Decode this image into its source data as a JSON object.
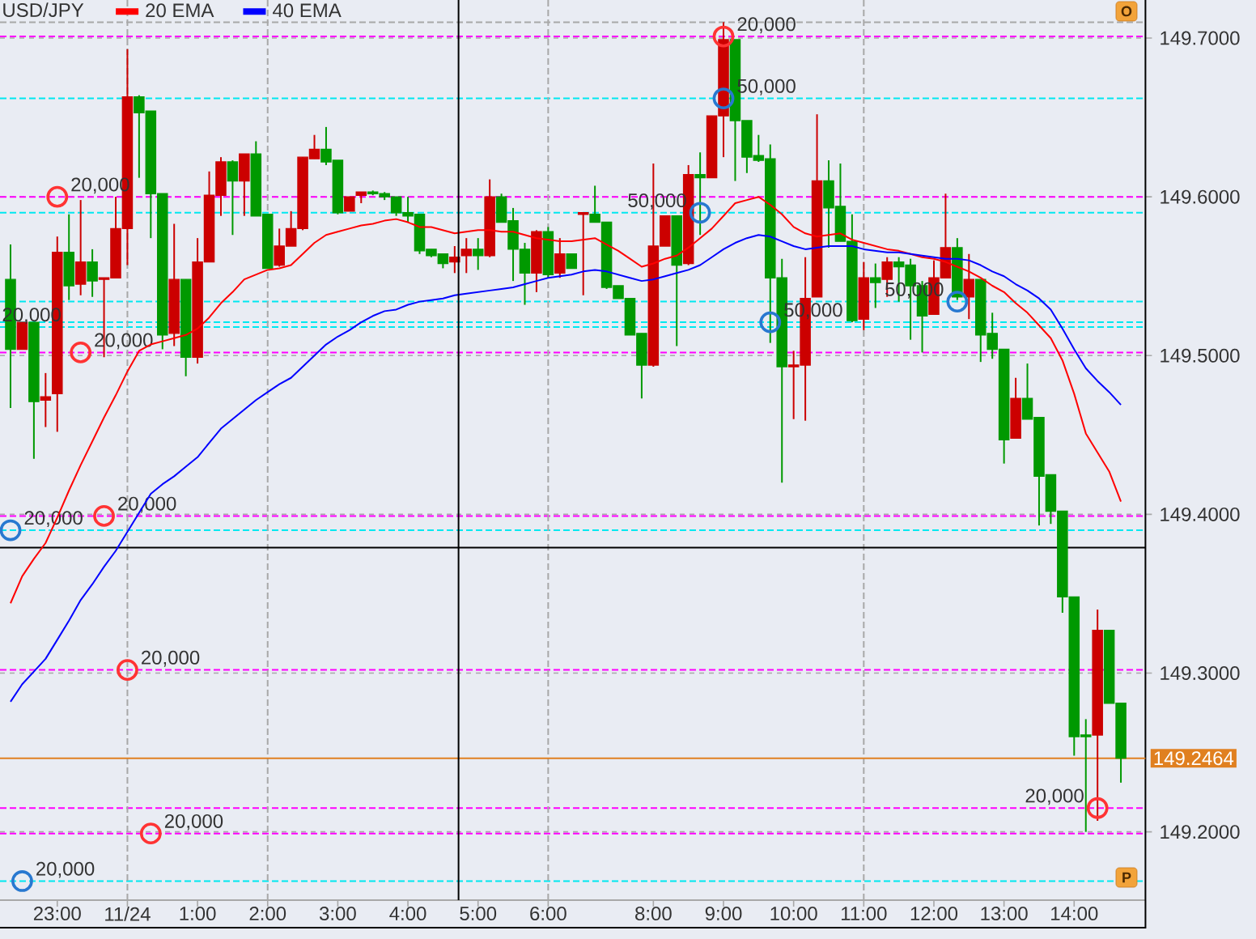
{
  "chart_data": {
    "type": "candlestick",
    "title": "USD/JPY",
    "categories": [
      null,
      null,
      null,
      null,
      "23:00",
      null,
      null,
      null,
      null,
      null,
      "11/24",
      null,
      null,
      null,
      null,
      null,
      "1:00",
      null,
      null,
      null,
      null,
      null,
      "2:00",
      null,
      null,
      null,
      null,
      null,
      "3:00",
      null,
      null,
      null,
      null,
      null,
      "4:00",
      null,
      null,
      null,
      null,
      null,
      "5:00",
      null,
      null,
      null,
      null,
      null,
      "6:00",
      null,
      null,
      null,
      null,
      null,
      null,
      null,
      null,
      "8:00",
      null,
      null,
      null,
      null,
      null,
      "9:00",
      null,
      null,
      null,
      null,
      null,
      "10:00",
      null,
      null,
      null,
      null,
      null,
      "11:00",
      null,
      null,
      null,
      null,
      null,
      "12:00",
      null,
      null,
      null,
      null,
      null,
      "13:00",
      null,
      null,
      null,
      null,
      null,
      "14:00",
      null,
      null,
      null,
      null
    ],
    "ohlc": [
      [
        149.548,
        149.57,
        149.467,
        149.504
      ],
      [
        149.504,
        149.521,
        149.504,
        149.521
      ],
      [
        149.521,
        149.521,
        149.435,
        149.471
      ],
      [
        149.472,
        149.489,
        149.455,
        149.474
      ],
      [
        149.476,
        149.575,
        149.452,
        149.565
      ],
      [
        149.565,
        149.589,
        149.535,
        149.544
      ],
      [
        149.545,
        149.598,
        149.538,
        149.559
      ],
      [
        149.559,
        149.567,
        149.537,
        149.547
      ],
      [
        149.548,
        149.549,
        149.499,
        149.549
      ],
      [
        149.549,
        149.6,
        149.549,
        149.58
      ],
      [
        149.58,
        149.693,
        149.557,
        149.663
      ],
      [
        149.663,
        149.664,
        149.612,
        149.653
      ],
      [
        149.654,
        149.654,
        149.574,
        149.602
      ],
      [
        149.602,
        149.602,
        149.504,
        149.513
      ],
      [
        149.514,
        149.583,
        149.506,
        149.548
      ],
      [
        149.548,
        149.548,
        149.487,
        149.499
      ],
      [
        149.499,
        149.574,
        149.495,
        149.559
      ],
      [
        149.559,
        149.616,
        149.559,
        149.601
      ],
      [
        149.601,
        149.625,
        149.588,
        149.622
      ],
      [
        149.622,
        149.623,
        149.576,
        149.61
      ],
      [
        149.61,
        149.627,
        149.588,
        149.627
      ],
      [
        149.627,
        149.635,
        149.588,
        149.588
      ],
      [
        149.589,
        149.589,
        149.555,
        149.555
      ],
      [
        149.557,
        149.58,
        149.556,
        149.569
      ],
      [
        149.569,
        149.591,
        149.569,
        149.58
      ],
      [
        149.58,
        149.625,
        149.579,
        149.625
      ],
      [
        149.624,
        149.639,
        149.624,
        149.63
      ],
      [
        149.63,
        149.644,
        149.62,
        149.622
      ],
      [
        149.623,
        149.623,
        149.589,
        149.59
      ],
      [
        149.591,
        149.6,
        149.591,
        149.6
      ],
      [
        149.601,
        149.603,
        149.596,
        149.603
      ],
      [
        149.603,
        149.604,
        149.601,
        149.602
      ],
      [
        149.602,
        149.603,
        149.598,
        149.6
      ],
      [
        149.6,
        149.6,
        149.588,
        149.59
      ],
      [
        149.59,
        149.6,
        149.584,
        149.588
      ],
      [
        149.589,
        149.589,
        149.564,
        149.566
      ],
      [
        149.567,
        149.567,
        149.562,
        149.563
      ],
      [
        149.564,
        149.564,
        149.555,
        149.558
      ],
      [
        149.559,
        149.569,
        149.552,
        149.562
      ],
      [
        149.563,
        149.574,
        149.552,
        149.567
      ],
      [
        149.567,
        149.574,
        149.554,
        149.563
      ],
      [
        149.563,
        149.611,
        149.562,
        149.6
      ],
      [
        149.6,
        149.602,
        149.584,
        149.584
      ],
      [
        149.585,
        149.593,
        149.547,
        149.567
      ],
      [
        149.567,
        149.571,
        149.532,
        149.552
      ],
      [
        149.552,
        149.579,
        149.54,
        149.578
      ],
      [
        149.578,
        149.581,
        149.549,
        149.551
      ],
      [
        149.552,
        149.574,
        149.549,
        149.564
      ],
      [
        149.564,
        149.564,
        149.555,
        149.555
      ],
      [
        149.589,
        149.59,
        149.538,
        149.59
      ],
      [
        149.589,
        149.607,
        149.584,
        149.584
      ],
      [
        149.584,
        149.584,
        149.542,
        149.543
      ],
      [
        149.544,
        149.544,
        149.536,
        149.536
      ],
      [
        149.536,
        149.536,
        149.513,
        149.513
      ],
      [
        149.514,
        149.514,
        149.473,
        149.494
      ],
      [
        149.494,
        149.621,
        149.493,
        149.569
      ],
      [
        149.569,
        149.588,
        149.569,
        149.588
      ],
      [
        149.588,
        149.588,
        149.506,
        149.557
      ],
      [
        149.558,
        149.62,
        149.557,
        149.614
      ],
      [
        149.614,
        149.628,
        149.576,
        149.612
      ],
      [
        149.612,
        149.651,
        149.612,
        149.651
      ],
      [
        149.651,
        149.71,
        149.625,
        149.699
      ],
      [
        149.699,
        149.699,
        149.61,
        149.648
      ],
      [
        149.648,
        149.648,
        149.615,
        149.625
      ],
      [
        149.626,
        149.639,
        149.622,
        149.623
      ],
      [
        149.624,
        149.633,
        149.508,
        149.549
      ],
      [
        149.549,
        149.561,
        149.42,
        149.493
      ],
      [
        149.493,
        149.503,
        149.46,
        149.494
      ],
      [
        149.494,
        149.562,
        149.459,
        149.536
      ],
      [
        149.537,
        149.652,
        149.537,
        149.61
      ],
      [
        149.61,
        149.623,
        149.568,
        149.593
      ],
      [
        149.594,
        149.621,
        149.572,
        149.572
      ],
      [
        149.572,
        149.589,
        149.521,
        149.522
      ],
      [
        149.523,
        149.559,
        149.516,
        149.549
      ],
      [
        149.549,
        149.558,
        149.53,
        149.546
      ],
      [
        149.548,
        149.562,
        149.537,
        149.559
      ],
      [
        149.559,
        149.562,
        149.534,
        149.556
      ],
      [
        149.557,
        149.561,
        149.51,
        149.544
      ],
      [
        149.544,
        149.547,
        149.502,
        149.525
      ],
      [
        149.526,
        149.56,
        149.526,
        149.549
      ],
      [
        149.549,
        149.602,
        149.549,
        149.568
      ],
      [
        149.568,
        149.574,
        149.535,
        149.537
      ],
      [
        149.537,
        149.564,
        149.523,
        149.548
      ],
      [
        149.548,
        149.548,
        149.496,
        149.513
      ],
      [
        149.514,
        149.527,
        149.498,
        149.504
      ],
      [
        149.504,
        149.504,
        149.432,
        149.447
      ],
      [
        149.448,
        149.486,
        149.448,
        149.473
      ],
      [
        149.473,
        149.495,
        149.46,
        149.46
      ],
      [
        149.461,
        149.461,
        149.393,
        149.424
      ],
      [
        149.425,
        149.425,
        149.394,
        149.402
      ],
      [
        149.402,
        149.402,
        149.338,
        149.348
      ],
      [
        149.348,
        149.348,
        149.248,
        149.26
      ],
      [
        149.261,
        149.271,
        149.2,
        149.26
      ],
      [
        149.261,
        149.34,
        149.207,
        149.327
      ],
      [
        149.327,
        149.327,
        149.281,
        149.281
      ],
      [
        149.281,
        149.281,
        149.231,
        149.2464
      ]
    ],
    "colors": [
      "#009900",
      "#cc0000",
      "#009900",
      "#cc0000",
      "#cc0000",
      "#009900",
      "#cc0000",
      "#009900",
      "#cc0000",
      "#cc0000",
      "#cc0000",
      "#009900",
      "#009900",
      "#009900",
      "#cc0000",
      "#009900",
      "#cc0000",
      "#cc0000",
      "#cc0000",
      "#009900",
      "#cc0000",
      "#009900",
      "#009900",
      "#cc0000",
      "#cc0000",
      "#cc0000",
      "#cc0000",
      "#009900",
      "#009900",
      "#cc0000",
      "#cc0000",
      "#009900",
      "#009900",
      "#009900",
      "#009900",
      "#009900",
      "#009900",
      "#009900",
      "#cc0000",
      "#cc0000",
      "#009900",
      "#cc0000",
      "#009900",
      "#009900",
      "#009900",
      "#cc0000",
      "#009900",
      "#cc0000",
      "#009900",
      "#cc0000",
      "#009900",
      "#009900",
      "#009900",
      "#009900",
      "#009900",
      "#cc0000",
      "#cc0000",
      "#009900",
      "#cc0000",
      "#009900",
      "#cc0000",
      "#cc0000",
      "#009900",
      "#009900",
      "#009900",
      "#009900",
      "#009900",
      "#cc0000",
      "#cc0000",
      "#cc0000",
      "#009900",
      "#009900",
      "#009900",
      "#cc0000",
      "#009900",
      "#cc0000",
      "#009900",
      "#009900",
      "#009900",
      "#cc0000",
      "#cc0000",
      "#009900",
      "#cc0000",
      "#009900",
      "#009900",
      "#009900",
      "#cc0000",
      "#009900",
      "#009900",
      "#009900",
      "#009900",
      "#009900",
      "#009900",
      "#cc0000",
      "#009900",
      "#009900"
    ],
    "series": [
      {
        "name": "20 EMA",
        "type": "line",
        "color": "#ff0000",
        "values": [
          149.344,
          149.361,
          149.372,
          149.382,
          149.398,
          149.415,
          149.431,
          149.446,
          149.461,
          149.475,
          149.49,
          149.503,
          149.507,
          149.509,
          149.511,
          149.513,
          149.517,
          149.524,
          149.533,
          149.54,
          149.548,
          149.551,
          149.554,
          149.555,
          149.557,
          149.564,
          149.571,
          149.576,
          149.578,
          149.58,
          149.582,
          149.583,
          149.585,
          149.586,
          149.584,
          149.581,
          149.581,
          149.579,
          149.577,
          149.578,
          149.579,
          149.579,
          149.578,
          149.578,
          149.576,
          149.574,
          149.573,
          149.572,
          149.572,
          149.573,
          149.574,
          149.57,
          149.566,
          149.561,
          149.556,
          149.558,
          149.561,
          149.563,
          149.568,
          149.574,
          149.58,
          149.588,
          149.596,
          149.598,
          149.6,
          149.595,
          149.589,
          149.581,
          149.577,
          149.575,
          149.576,
          149.577,
          149.573,
          149.571,
          149.569,
          149.567,
          149.566,
          149.564,
          149.562,
          149.561,
          149.559,
          149.556,
          149.553,
          149.549,
          149.544,
          149.54,
          149.533,
          149.527,
          149.519,
          149.511,
          149.497,
          149.476,
          149.451,
          149.439,
          149.427,
          149.408
        ]
      },
      {
        "name": "40 EMA",
        "type": "line",
        "color": "#0000ff",
        "values": [
          149.282,
          149.293,
          149.301,
          149.309,
          149.321,
          149.333,
          149.346,
          149.356,
          149.367,
          149.377,
          149.389,
          149.401,
          149.413,
          149.419,
          149.424,
          149.43,
          149.436,
          149.445,
          149.454,
          149.46,
          149.466,
          149.472,
          149.477,
          149.482,
          149.486,
          149.493,
          149.5,
          149.507,
          149.512,
          149.516,
          149.521,
          149.525,
          149.528,
          149.529,
          149.532,
          149.534,
          149.535,
          149.536,
          149.538,
          149.539,
          149.54,
          149.541,
          149.542,
          149.543,
          149.545,
          149.547,
          149.549,
          149.55,
          149.551,
          149.553,
          149.554,
          149.553,
          149.551,
          149.549,
          149.547,
          149.548,
          149.55,
          149.552,
          149.554,
          149.557,
          149.562,
          149.567,
          149.571,
          149.574,
          149.576,
          149.575,
          149.572,
          149.569,
          149.567,
          149.568,
          149.569,
          149.569,
          149.569,
          149.567,
          149.566,
          149.565,
          149.565,
          149.564,
          149.563,
          149.562,
          149.561,
          149.561,
          149.56,
          149.557,
          149.553,
          149.55,
          149.545,
          149.541,
          149.536,
          149.529,
          149.517,
          149.504,
          149.492,
          149.484,
          149.477,
          149.469
        ]
      },
      {
        "type": "scatter",
        "color": "#ff3333",
        "marker": "circle",
        "values": [
          null,
          null,
          null,
          null,
          149.6,
          null,
          149.502,
          null,
          149.399,
          null,
          149.302,
          null,
          149.199,
          null,
          null,
          null,
          null,
          null,
          null,
          null,
          null,
          null,
          null,
          null,
          null,
          null,
          null,
          null,
          null,
          null,
          null,
          null,
          null,
          null,
          null,
          null,
          null,
          null,
          null,
          null,
          null,
          null,
          null,
          null,
          null,
          null,
          null,
          null,
          null,
          null,
          null,
          null,
          null,
          null,
          null,
          null,
          null,
          null,
          null,
          null,
          null,
          149.701,
          null,
          null,
          null,
          null,
          null,
          null,
          null,
          null,
          null,
          null,
          null,
          null,
          null,
          null,
          null,
          null,
          null,
          null,
          null,
          null,
          null,
          null,
          null,
          null,
          null,
          null,
          null,
          null,
          null,
          null,
          null,
          149.215,
          null,
          null
        ]
      },
      {
        "type": "scatter",
        "color": "#2878d0",
        "marker": "circle",
        "values": [
          149.39,
          149.169,
          null,
          null,
          null,
          null,
          null,
          null,
          null,
          null,
          null,
          null,
          null,
          null,
          null,
          null,
          null,
          null,
          null,
          null,
          null,
          null,
          null,
          null,
          null,
          null,
          null,
          null,
          null,
          null,
          null,
          null,
          null,
          null,
          null,
          null,
          null,
          null,
          null,
          null,
          null,
          null,
          null,
          null,
          null,
          null,
          null,
          null,
          null,
          null,
          null,
          null,
          null,
          null,
          null,
          null,
          null,
          null,
          null,
          149.59,
          null,
          149.662,
          null,
          null,
          null,
          149.521,
          null,
          null,
          null,
          null,
          null,
          null,
          null,
          null,
          null,
          null,
          null,
          null,
          null,
          null,
          null,
          149.534,
          null,
          null,
          null,
          null,
          null,
          null,
          null,
          null,
          null,
          null,
          null,
          null,
          null,
          null
        ]
      }
    ],
    "ylim": [
      149.157,
      149.724
    ],
    "yticks": [
      {
        "value": 149.2,
        "label": "149.2000"
      },
      {
        "value": 149.3,
        "label": "149.3000"
      },
      {
        "value": 149.4,
        "label": "149.4000"
      },
      {
        "value": 149.5,
        "label": "149.5000"
      },
      {
        "value": 149.6,
        "label": "149.6000"
      },
      {
        "value": 149.7,
        "label": "149.7000"
      }
    ],
    "grid": "y",
    "legend": "top left",
    "ref_lines": [
      {
        "axis": "y",
        "value": 149.71,
        "color": "#a8a8a8",
        "line_style": "dashed"
      },
      {
        "axis": "y",
        "value": 149.701,
        "color": "#ff00ff",
        "line_style": "dashed"
      },
      {
        "axis": "y",
        "value": 149.662,
        "color": "#00e8f0",
        "line_style": "dashed"
      },
      {
        "axis": "y",
        "value": 149.6,
        "color": "#ff00ff",
        "line_style": "dashed"
      },
      {
        "axis": "y",
        "value": 149.59,
        "color": "#00e8f0",
        "line_style": "dashed"
      },
      {
        "axis": "y",
        "value": 149.534,
        "color": "#00e8f0",
        "line_style": "dashed"
      },
      {
        "axis": "y",
        "value": 149.521,
        "color": "#00e8f0",
        "line_style": "dashed"
      },
      {
        "axis": "y",
        "value": 149.518,
        "color": "#00e8f0",
        "line_style": "dashed"
      },
      {
        "axis": "y",
        "value": 149.502,
        "color": "#ff00ff",
        "line_style": "dashed"
      },
      {
        "axis": "y",
        "value": 149.399,
        "color": "#ff00ff",
        "line_style": "dashed"
      },
      {
        "axis": "y",
        "value": 149.39,
        "color": "#00e8f0",
        "line_style": "dashed"
      },
      {
        "axis": "y",
        "value": 149.302,
        "color": "#ff00ff",
        "line_style": "dashed"
      },
      {
        "axis": "y",
        "value": 149.215,
        "color": "#ff00ff",
        "line_style": "dashed"
      },
      {
        "axis": "y",
        "value": 149.199,
        "color": "#ff00ff",
        "line_style": "dashed"
      },
      {
        "axis": "y",
        "value": 149.169,
        "color": "#00e8f0",
        "line_style": "dashed"
      },
      {
        "axis": "x",
        "value": "11/24",
        "color": "#a8a8a8",
        "line_style": "dashed"
      },
      {
        "axis": "x",
        "value": "2:00",
        "color": "#a8a8a8",
        "line_style": "dashed"
      },
      {
        "axis": "x",
        "value": "6:00",
        "color": "#a8a8a8",
        "line_style": "dashed"
      },
      {
        "axis": "x",
        "value": "11:00",
        "color": "#a8a8a8",
        "line_style": "dashed"
      },
      {
        "axis": "y",
        "value": 149.379,
        "color": "#000000",
        "line_style": "solid"
      },
      {
        "axis": "y",
        "value": 149.2464,
        "color": "#e08020",
        "line_style": "solid",
        "label": "149.2464"
      }
    ],
    "annotations": [
      "O",
      "P",
      {
        "text": "20,000",
        "y": 149.6
      },
      {
        "text": "20,000",
        "y": 149.502
      },
      {
        "text": "20,000",
        "y": 149.399
      },
      {
        "text": "20,000",
        "y": 149.302
      },
      {
        "text": "20,000",
        "y": 149.199
      },
      {
        "text": "20,000",
        "y": 149.701
      },
      {
        "text": "20,000",
        "y": 149.215
      },
      {
        "text": "20,000",
        "y": 149.518
      },
      {
        "text": "20,000",
        "y": 149.39
      },
      {
        "text": "20,000",
        "y": 149.169
      },
      {
        "text": "50,000",
        "y": 149.59
      },
      {
        "text": "50,000",
        "y": 149.662
      },
      {
        "text": "50,000",
        "y": 149.521
      },
      {
        "text": "50,000",
        "y": 149.534
      }
    ]
  }
}
